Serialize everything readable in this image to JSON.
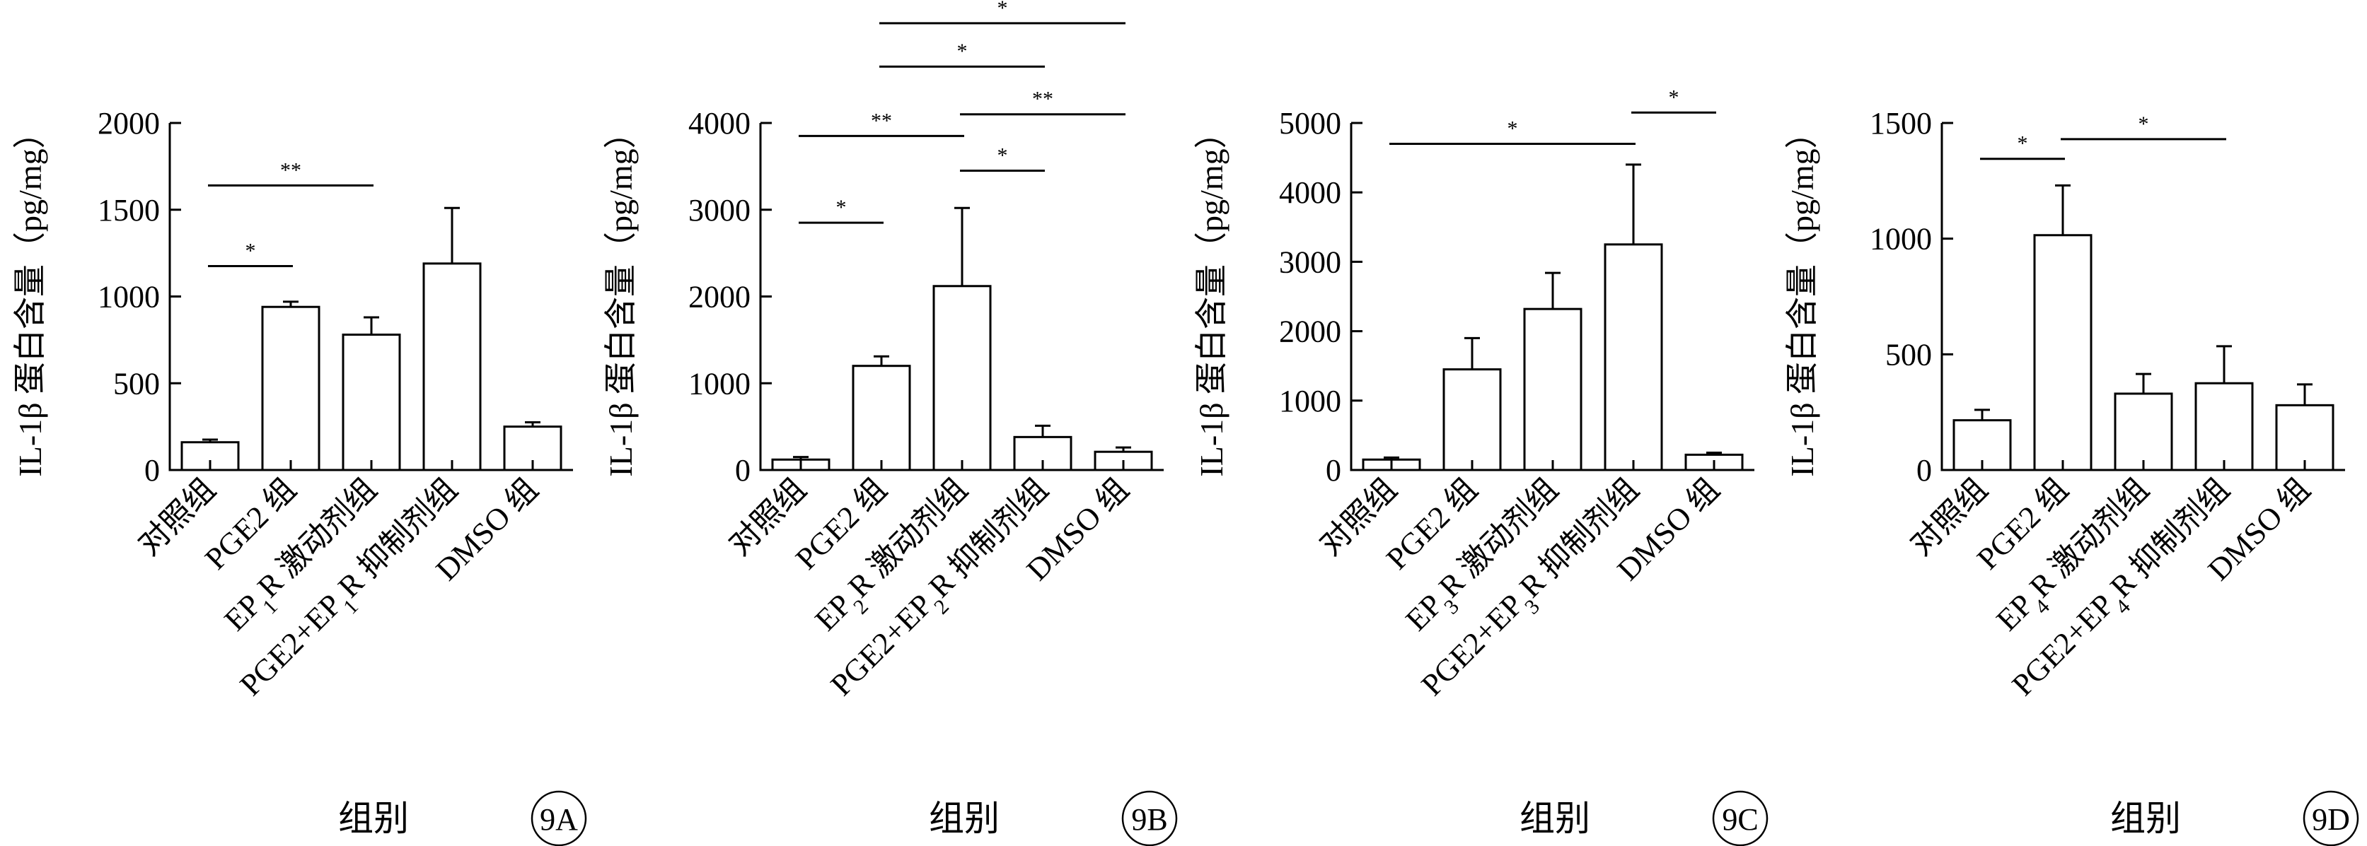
{
  "chart_data": [
    {
      "type": "bar",
      "panel_label": "9A",
      "ylabel": "IL-1β 蛋白含量（pg/mg）",
      "xlabel": "组别",
      "ylim": [
        0,
        2000
      ],
      "yticks": [
        "0",
        "500",
        "1000",
        "1500",
        "2000"
      ],
      "categories": [
        {
          "text": "对照组"
        },
        {
          "text": "PGE2 组"
        },
        {
          "pre": "EP",
          "sub": "1",
          "post": "R 激动剂组"
        },
        {
          "pre": "PGE2+EP",
          "sub": "1",
          "post": "R 抑制剂组"
        },
        {
          "text": "DMSO 组"
        }
      ],
      "values": [
        160,
        940,
        780,
        1190,
        250
      ],
      "errors": [
        15,
        30,
        100,
        320,
        25
      ],
      "significance": [
        {
          "from": 0,
          "to": 1,
          "label": "*",
          "y": 1175
        },
        {
          "from": 0,
          "to": 2,
          "label": "**",
          "y": 1640
        }
      ]
    },
    {
      "type": "bar",
      "panel_label": "9B",
      "ylabel": "IL-1β 蛋白含量（pg/mg）",
      "xlabel": "组别",
      "ylim": [
        0,
        4000
      ],
      "yticks": [
        "0",
        "1000",
        "2000",
        "3000",
        "4000"
      ],
      "categories": [
        {
          "text": "对照组"
        },
        {
          "text": "PGE2 组"
        },
        {
          "pre": "EP",
          "sub": "2",
          "post": "R 激动剂组"
        },
        {
          "pre": "PGE2+EP",
          "sub": "2",
          "post": "R 抑制剂组"
        },
        {
          "text": "DMSO 组"
        }
      ],
      "values": [
        120,
        1200,
        2120,
        380,
        210
      ],
      "errors": [
        30,
        110,
        900,
        130,
        50
      ],
      "significance": [
        {
          "from": 0,
          "to": 1,
          "label": "*",
          "y": 2850
        },
        {
          "from": 0,
          "to": 2,
          "label": "**",
          "y": 3850
        },
        {
          "from": 2,
          "to": 3,
          "label": "*",
          "y": 3450
        },
        {
          "from": 2,
          "to": 4,
          "label": "**",
          "y": 4100
        },
        {
          "from": 1,
          "to": 3,
          "label": "*",
          "y": 4650
        },
        {
          "from": 1,
          "to": 4,
          "label": "*",
          "y": 5150
        }
      ]
    },
    {
      "type": "bar",
      "panel_label": "9C",
      "ylabel": "IL-1β 蛋白含量（pg/mg）",
      "xlabel": "组别",
      "ylim": [
        0,
        5000
      ],
      "yticks": [
        "0",
        "1000",
        "2000",
        "3000",
        "4000",
        "5000"
      ],
      "categories": [
        {
          "text": "对照组"
        },
        {
          "text": "PGE2 组"
        },
        {
          "pre": "EP",
          "sub": "3",
          "post": "R 激动剂组"
        },
        {
          "pre": "PGE2+EP",
          "sub": "3",
          "post": "R 抑制剂组"
        },
        {
          "text": "DMSO 组"
        }
      ],
      "values": [
        150,
        1450,
        2320,
        3250,
        220
      ],
      "errors": [
        30,
        450,
        520,
        1150,
        30
      ],
      "significance": [
        {
          "from": 0,
          "to": 3,
          "label": "*",
          "y": 4700
        },
        {
          "from": 3,
          "to": 4,
          "label": "*",
          "y": 5150
        }
      ]
    },
    {
      "type": "bar",
      "panel_label": "9D",
      "ylabel": "IL-1β 蛋白含量（pg/mg）",
      "xlabel": "组别",
      "ylim": [
        0,
        1500
      ],
      "yticks": [
        "0",
        "500",
        "1000",
        "1500"
      ],
      "categories": [
        {
          "text": "对照组"
        },
        {
          "text": "PGE2 组"
        },
        {
          "pre": "EP",
          "sub": "4",
          "post": "R 激动剂组"
        },
        {
          "pre": "PGE2+EP",
          "sub": "4",
          "post": "R 抑制剂组"
        },
        {
          "text": "DMSO 组"
        }
      ],
      "values": [
        215,
        1015,
        330,
        375,
        280
      ],
      "errors": [
        45,
        215,
        85,
        160,
        90
      ],
      "significance": [
        {
          "from": 0,
          "to": 1,
          "label": "*",
          "y": 1345
        },
        {
          "from": 1,
          "to": 3,
          "label": "*",
          "y": 1430
        }
      ]
    }
  ]
}
